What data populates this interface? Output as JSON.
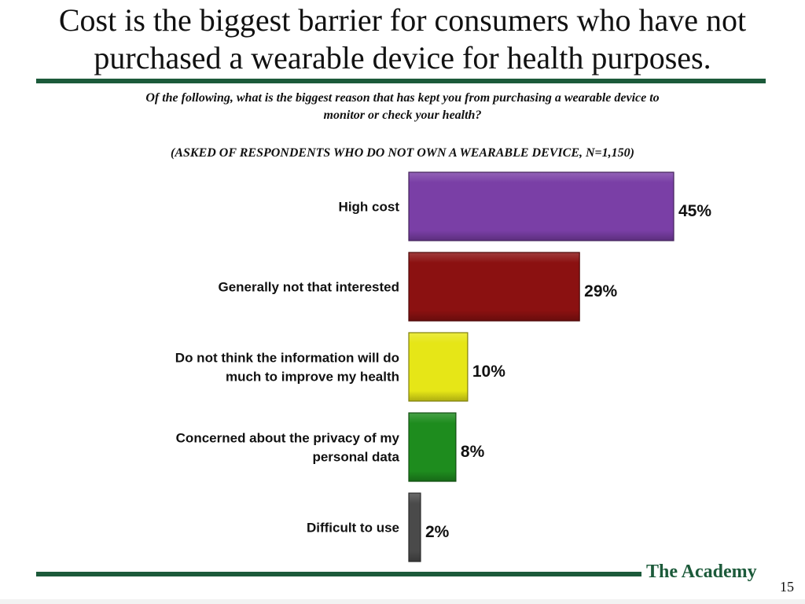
{
  "header": {
    "title_lines": [
      "Cost is the biggest barrier for consumers who have not",
      "purchased a wearable device for health purposes."
    ],
    "question_lines": [
      "Of the following, what is the biggest reason that has kept you from purchasing a wearable device to",
      "monitor or check your health?"
    ],
    "base_note": "(ASKED OF RESPONDENTS WHO DO NOT OWN A WEARABLE DEVICE, N=1,150)"
  },
  "footer": {
    "brand": "The Academy",
    "page_number": "15"
  },
  "colors": {
    "rule": "#1c5a3a",
    "brand": "#1c5a3a"
  },
  "chart_data": {
    "type": "bar",
    "orientation": "horizontal",
    "categories": [
      [
        "High cost"
      ],
      [
        "Generally not that interested"
      ],
      [
        "Do not think the information will do",
        "much to improve my health"
      ],
      [
        "Concerned about the privacy of my",
        "personal data"
      ],
      [
        "Difficult to use"
      ]
    ],
    "values": [
      45,
      29,
      10,
      8,
      2
    ],
    "value_labels": [
      "45%",
      "29%",
      "10%",
      "8%",
      "2%"
    ],
    "bar_colors": [
      "#7a3fa6",
      "#8b1111",
      "#e6e617",
      "#1e8c1e",
      "#4a4a4a"
    ],
    "xlim": [
      0,
      45
    ],
    "grid": false,
    "legend": "none"
  }
}
